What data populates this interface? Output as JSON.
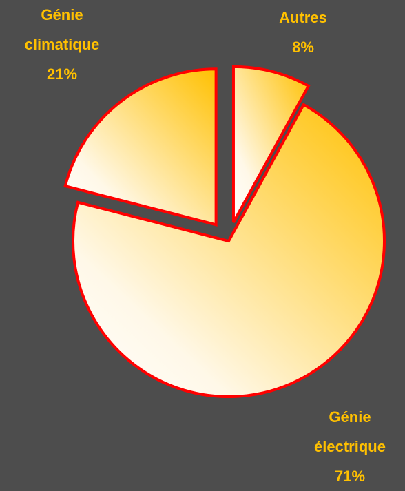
{
  "chart_data": {
    "type": "pie",
    "categories": [
      "Autres",
      "Génie électrique",
      "Génie climatique"
    ],
    "values": [
      8,
      71,
      21
    ],
    "value_labels": [
      "8%",
      "71%",
      "21%"
    ],
    "color": "#ffc000",
    "edge_color": "#ff0000"
  }
}
